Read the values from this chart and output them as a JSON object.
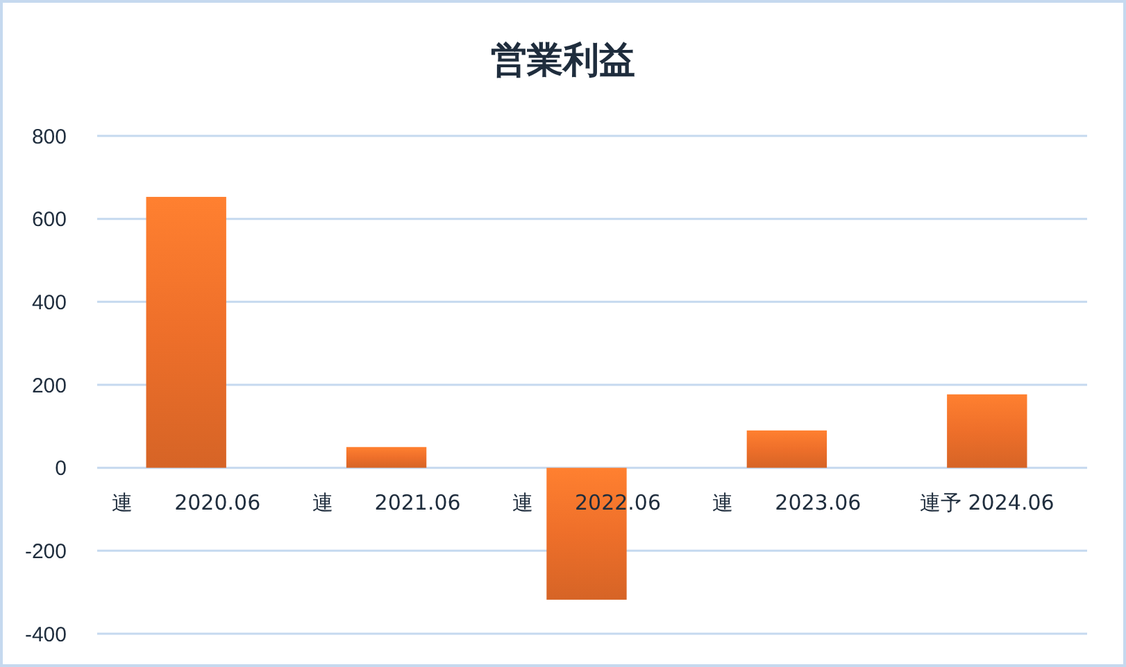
{
  "chart_data": {
    "type": "bar",
    "title": "営業利益",
    "categories": [
      "連　　2020.06",
      "連　　2021.06",
      "連　　2022.06",
      "連　　2023.06",
      "連予 2024.06"
    ],
    "values": [
      653,
      50,
      -318,
      90,
      177
    ],
    "color": "#ee6f2a",
    "ylim": [
      -400,
      800
    ],
    "yticks": [
      -400,
      -200,
      0,
      200,
      400,
      600,
      800
    ],
    "grid": "y"
  }
}
